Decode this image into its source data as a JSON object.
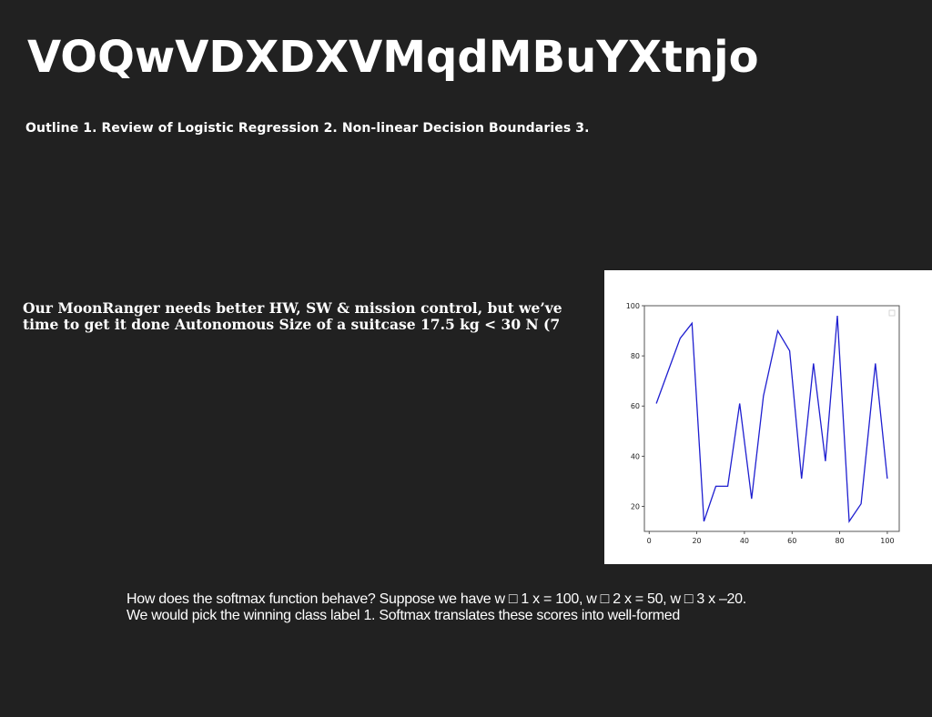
{
  "slide": {
    "title": "VOQwVDXDXVMqdMBuYXtnjo",
    "subtitle": "Outline 1. Review of Logistic Regression 2. Non-linear Decision Boundaries 3.",
    "body": "Our MoonRanger needs better HW, SW & mission control, but we’ve time to get it done Autonomous Size of a suitcase 17.5 kg < 30 N (7",
    "caption": "How does the softmax function behave? Suppose we have w □ 1 x = 100, w □ 2 x = 50, w □ 3 x –20. We would pick the winning class label 1. Softmax translates these scores into well-formed"
  },
  "chart_data": {
    "type": "line",
    "title": "",
    "xlabel": "",
    "ylabel": "",
    "xlim": [
      -2,
      105
    ],
    "ylim": [
      10,
      100
    ],
    "xticks": [
      0,
      20,
      40,
      60,
      80,
      100
    ],
    "yticks": [
      20,
      40,
      60,
      80,
      100
    ],
    "grid": false,
    "legend": "top-right",
    "series": [
      {
        "color": "#1f1fd0",
        "x": [
          3,
          8,
          13,
          18,
          23,
          28,
          33,
          38,
          43,
          48,
          54,
          59,
          64,
          69,
          74,
          79,
          84,
          89,
          95,
          100
        ],
        "y": [
          61,
          74,
          87,
          93,
          14,
          28,
          28,
          61,
          23,
          64,
          90,
          82,
          31,
          77,
          38,
          96,
          14,
          21,
          77,
          31
        ]
      }
    ]
  }
}
